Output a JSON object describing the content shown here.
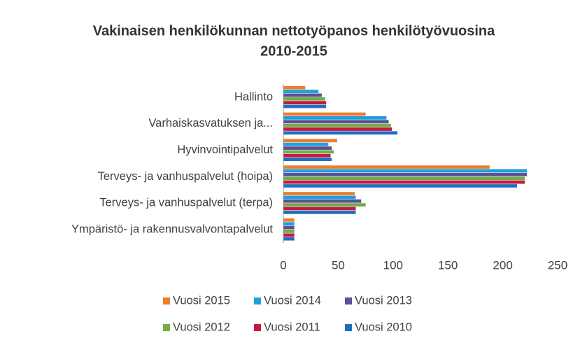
{
  "chart_data": {
    "type": "hbar",
    "title": [
      "Vakinaisen henkilökunnan nettotyöpanos henkilötyövuosina",
      "2010-2015"
    ],
    "categories": [
      "Hallinto",
      "Varhaiskasvatuksen ja...",
      "Hyvinvointipalvelut",
      "Terveys- ja vanhuspalvelut (hoipa)",
      "Terveys- ja vanhuspalvelut (terpa)",
      "Ympäristö- ja rakennusvalvontapalvelut"
    ],
    "series": [
      {
        "name": "Vuosi 2015",
        "color": "#ed7d31",
        "values": [
          20,
          75,
          49,
          188,
          65,
          10
        ]
      },
      {
        "name": "Vuosi 2014",
        "color": "#1ea0db",
        "values": [
          32,
          94,
          41,
          222,
          66,
          10
        ]
      },
      {
        "name": "Vuosi 2013",
        "color": "#5b4f96",
        "values": [
          35,
          96,
          44,
          222,
          71,
          10
        ]
      },
      {
        "name": "Vuosi 2012",
        "color": "#70ad47",
        "values": [
          38,
          98,
          46,
          220,
          75,
          10
        ]
      },
      {
        "name": "Vuosi 2011",
        "color": "#c8173f",
        "values": [
          39,
          99,
          43,
          220,
          66,
          10
        ]
      },
      {
        "name": "Vuosi 2010",
        "color": "#1f6fbf",
        "values": [
          39,
          104,
          44,
          213,
          66,
          10
        ]
      }
    ],
    "xlim": [
      0,
      250
    ],
    "xticks": [
      0,
      50,
      100,
      150,
      200,
      250
    ],
    "grid": false,
    "legend": "bottom"
  }
}
